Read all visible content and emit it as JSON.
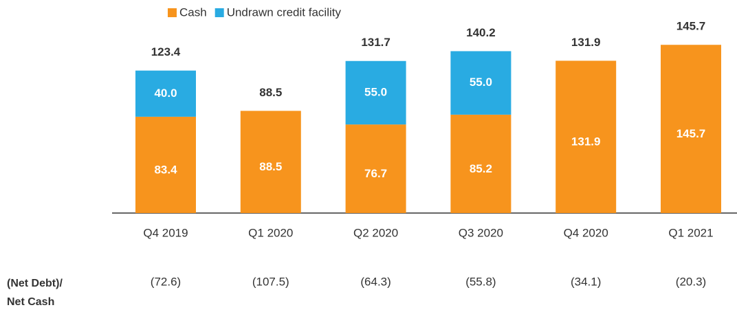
{
  "chart_data": {
    "type": "stacked_bar",
    "categories": [
      "Q4 2019",
      "Q1 2020",
      "Q2 2020",
      "Q3 2020",
      "Q4 2020",
      "Q1 2021"
    ],
    "series": [
      {
        "name": "Cash",
        "color": "#f7941d",
        "values": [
          83.4,
          88.5,
          76.7,
          85.2,
          131.9,
          145.7
        ]
      },
      {
        "name": "Undrawn credit facility",
        "color": "#29abe2",
        "values": [
          40,
          null,
          55,
          55,
          null,
          null
        ],
        "value_labels": [
          "40.0",
          null,
          "55.0",
          "55.0",
          null,
          null
        ]
      }
    ],
    "totals": [
      123.4,
      88.5,
      131.7,
      140.2,
      131.9,
      145.7
    ],
    "net_cash": {
      "label_lines": [
        "(Net Debt)/",
        "Net Cash"
      ],
      "values": [
        -72.6,
        -107.5,
        -64.3,
        -55.8,
        -34.1,
        -20.3
      ],
      "value_labels": [
        "(72.6)",
        "(107.5)",
        "(64.3)",
        "(55.8)",
        "(34.1)",
        "(20.3)"
      ]
    }
  }
}
